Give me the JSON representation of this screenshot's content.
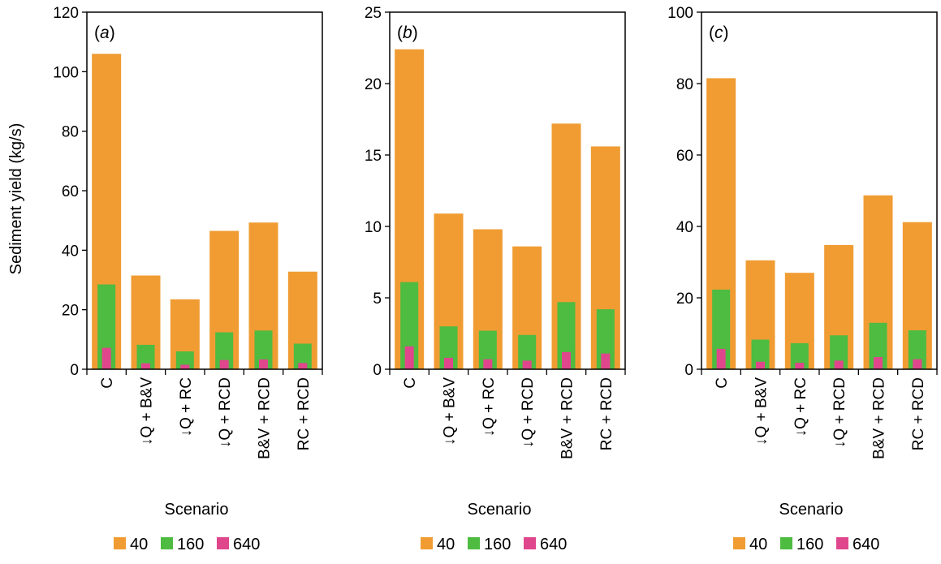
{
  "chart_data": [
    {
      "type": "bar",
      "panel_label": "a",
      "ylim": [
        0,
        120
      ],
      "yticks": [
        0,
        20,
        40,
        60,
        80,
        100,
        120
      ],
      "xlabel": "Scenario",
      "ylabel": "Sediment yield (kg/s)",
      "categories": [
        "C",
        "↓Q + B&V",
        "↓Q + RC",
        "↓Q + RCD",
        "B&V + RCD",
        "RC + RCD"
      ],
      "series": [
        {
          "name": "40",
          "color": "#F09C33",
          "values": [
            106,
            31.5,
            23.5,
            46.5,
            49.3,
            32.8
          ]
        },
        {
          "name": "160",
          "color": "#4EBB41",
          "values": [
            28.5,
            8.2,
            6.0,
            12.4,
            13.0,
            8.6
          ]
        },
        {
          "name": "640",
          "color": "#E0468C",
          "values": [
            7.2,
            2.0,
            1.5,
            3.1,
            3.3,
            2.1
          ]
        }
      ],
      "legend": [
        "40",
        "160",
        "640"
      ]
    },
    {
      "type": "bar",
      "panel_label": "b",
      "ylim": [
        0,
        25
      ],
      "yticks": [
        0,
        5,
        10,
        15,
        20,
        25
      ],
      "xlabel": "Scenario",
      "ylabel": "",
      "categories": [
        "C",
        "↓Q + B&V",
        "↓Q + RC",
        "↓Q + RCD",
        "B&V + RCD",
        "RC + RCD"
      ],
      "series": [
        {
          "name": "40",
          "color": "#F09C33",
          "values": [
            22.4,
            10.9,
            9.8,
            8.6,
            17.2,
            15.6
          ]
        },
        {
          "name": "160",
          "color": "#4EBB41",
          "values": [
            6.1,
            3.0,
            2.7,
            2.4,
            4.7,
            4.2
          ]
        },
        {
          "name": "640",
          "color": "#E0468C",
          "values": [
            1.6,
            0.8,
            0.7,
            0.6,
            1.2,
            1.1
          ]
        }
      ],
      "legend": [
        "40",
        "160",
        "640"
      ]
    },
    {
      "type": "bar",
      "panel_label": "c",
      "ylim": [
        0,
        100
      ],
      "yticks": [
        0,
        20,
        40,
        60,
        80,
        100
      ],
      "xlabel": "Scenario",
      "ylabel": "",
      "categories": [
        "C",
        "↓Q + B&V",
        "↓Q + RC",
        "↓Q + RCD",
        "B&V + RCD",
        "RC + RCD"
      ],
      "series": [
        {
          "name": "40",
          "color": "#F09C33",
          "values": [
            81.5,
            30.5,
            27.0,
            34.8,
            48.7,
            41.2
          ]
        },
        {
          "name": "160",
          "color": "#4EBB41",
          "values": [
            22.3,
            8.3,
            7.3,
            9.5,
            13.0,
            10.9
          ]
        },
        {
          "name": "640",
          "color": "#E0468C",
          "values": [
            5.7,
            2.1,
            1.8,
            2.4,
            3.4,
            2.8
          ]
        }
      ],
      "legend": [
        "40",
        "160",
        "640"
      ]
    }
  ]
}
